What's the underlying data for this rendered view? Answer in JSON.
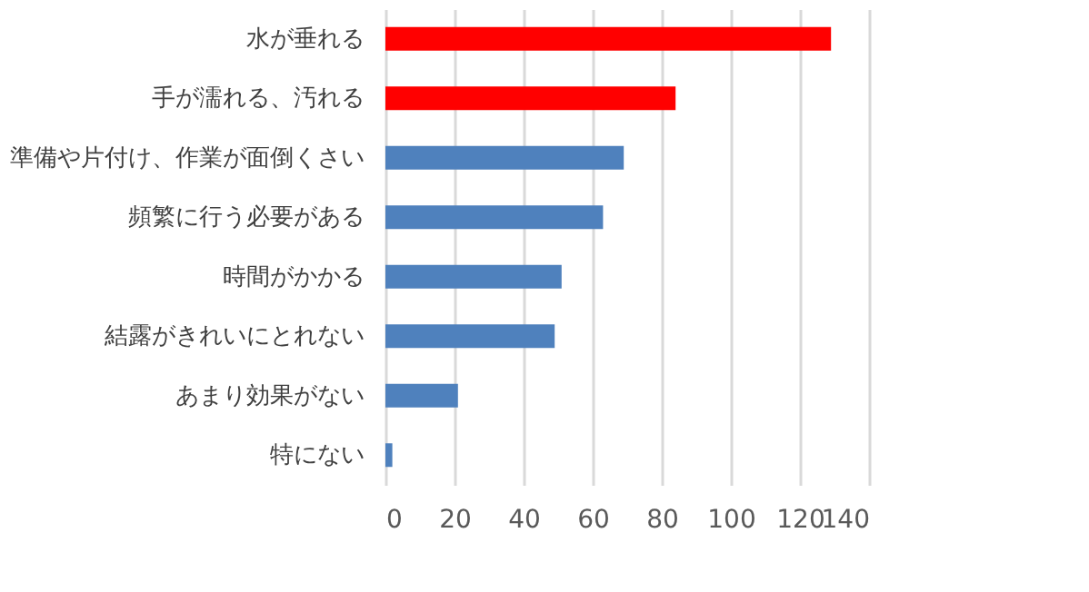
{
  "chart_data": {
    "type": "bar",
    "orientation": "horizontal",
    "categories": [
      "水が垂れる",
      "手が濡れる、汚れる",
      "準備や片付け、作業が面倒くさい",
      "頻繁に行う必要がある",
      "時間がかかる",
      "結露がきれいにとれない",
      "あまり効果がない",
      "特にない"
    ],
    "values": [
      129,
      84,
      69,
      63,
      51,
      49,
      21,
      2
    ],
    "colors": [
      "#ff0000",
      "#ff0000",
      "#4f81bd",
      "#4f81bd",
      "#4f81bd",
      "#4f81bd",
      "#4f81bd",
      "#4f81bd"
    ],
    "xlim": [
      0,
      140
    ],
    "xticks": [
      0,
      20,
      40,
      60,
      80,
      100,
      120,
      140
    ],
    "grid": "x"
  }
}
